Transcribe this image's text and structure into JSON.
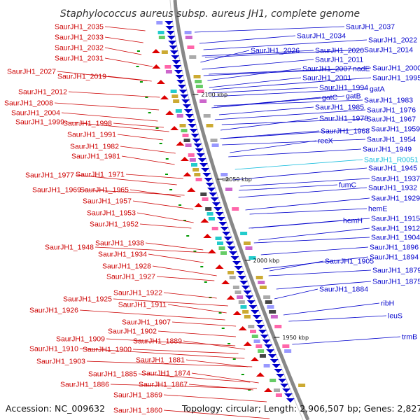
{
  "header": {
    "title": "Staphylococcus aureus subsp. aureus JH1, complete genome"
  },
  "footer": {
    "accession": "Accession: NC_009632",
    "summary": "Topology: circular; Length: 2,906,507 bp; Genes: 2,827"
  },
  "colors": {
    "left_label": "#cc0000",
    "right_label": "#0000cc",
    "rna_label": "#11bbdd",
    "backbone": "#888888",
    "forward_gene": "#dd0000",
    "reverse_gene": "#0000cc",
    "marker": "#009900"
  },
  "scale_marks": [
    {
      "label": "2100 kbp"
    },
    {
      "label": "2050 kbp"
    },
    {
      "label": "2000 kbp"
    },
    {
      "label": "1950 kbp"
    }
  ],
  "left_labels": [
    {
      "text": "SaurJH1_2035"
    },
    {
      "text": "SaurJH1_2033"
    },
    {
      "text": "SaurJH1_2032"
    },
    {
      "text": "SaurJH1_2031"
    },
    {
      "text": "SaurJH1_2027"
    },
    {
      "text": "SaurJH1_2019"
    },
    {
      "text": "SaurJH1_2012"
    },
    {
      "text": "SaurJH1_2008"
    },
    {
      "text": "SaurJH1_2004"
    },
    {
      "text": "SaurJH1_1999"
    },
    {
      "text": "SaurJH1_1998"
    },
    {
      "text": "SaurJH1_1991"
    },
    {
      "text": "SaurJH1_1982"
    },
    {
      "text": "SaurJH1_1981"
    },
    {
      "text": "SaurJH1_1977"
    },
    {
      "text": "SaurJH1_1971"
    },
    {
      "text": "SaurJH1_1969"
    },
    {
      "text": "SaurJH1_1965"
    },
    {
      "text": "SaurJH1_1957"
    },
    {
      "text": "SaurJH1_1953"
    },
    {
      "text": "SaurJH1_1952"
    },
    {
      "text": "SaurJH1_1948"
    },
    {
      "text": "SaurJH1_1938"
    },
    {
      "text": "SaurJH1_1934"
    },
    {
      "text": "SaurJH1_1928"
    },
    {
      "text": "SaurJH1_1927"
    },
    {
      "text": "SaurJH1_1922"
    },
    {
      "text": "SaurJH1_1925"
    },
    {
      "text": "SaurJH1_1911"
    },
    {
      "text": "SaurJH1_1926"
    },
    {
      "text": "SaurJH1_1907"
    },
    {
      "text": "SaurJH1_1902"
    },
    {
      "text": "SaurJH1_1909"
    },
    {
      "text": "SaurJH1_1889"
    },
    {
      "text": "SaurJH1_1910"
    },
    {
      "text": "SaurJH1_1900"
    },
    {
      "text": "SaurJH1_1903"
    },
    {
      "text": "SaurJH1_1881"
    },
    {
      "text": "SaurJH1_1885"
    },
    {
      "text": "SaurJH1_1874"
    },
    {
      "text": "SaurJH1_1886"
    },
    {
      "text": "SaurJH1_1867"
    },
    {
      "text": "SaurJH1_1869"
    },
    {
      "text": "SaurJH1_1860"
    }
  ],
  "right_labels": [
    {
      "text": "SaurJH1_2037"
    },
    {
      "text": "SaurJH1_2034"
    },
    {
      "text": "SaurJH1_2022"
    },
    {
      "text": "SaurJH1_2026"
    },
    {
      "text": "SaurJH1_2020"
    },
    {
      "text": "SaurJH1_2014"
    },
    {
      "text": "SaurJH1_2011"
    },
    {
      "text": "SaurJH1_2007"
    },
    {
      "text": "nadE"
    },
    {
      "text": "SaurJH1_2000"
    },
    {
      "text": "SaurJH1_2001"
    },
    {
      "text": "SaurJH1_1995"
    },
    {
      "text": "SaurJH1_1994"
    },
    {
      "text": "gatA"
    },
    {
      "text": "gatC"
    },
    {
      "text": "gatB"
    },
    {
      "text": "SaurJH1_1983"
    },
    {
      "text": "SaurJH1_1985"
    },
    {
      "text": "SaurJH1_1976"
    },
    {
      "text": "SaurJH1_1978"
    },
    {
      "text": "SaurJH1_1967"
    },
    {
      "text": "SaurJH1_1968"
    },
    {
      "text": "SaurJH1_1959"
    },
    {
      "text": "recX"
    },
    {
      "text": "SaurJH1_1954"
    },
    {
      "text": "SaurJH1_1949"
    },
    {
      "text": "SaurJH1_R0051",
      "rna": true
    },
    {
      "text": "SaurJH1_1945"
    },
    {
      "text": "fumC"
    },
    {
      "text": "SaurJH1_1937"
    },
    {
      "text": "SaurJH1_1932"
    },
    {
      "text": "SaurJH1_1929"
    },
    {
      "text": "hemE"
    },
    {
      "text": "hemH"
    },
    {
      "text": "SaurJH1_1915"
    },
    {
      "text": "SaurJH1_1912"
    },
    {
      "text": "SaurJH1_1904"
    },
    {
      "text": "SaurJH1_1896"
    },
    {
      "text": "SaurJH1_1905"
    },
    {
      "text": "SaurJH1_1894"
    },
    {
      "text": "SaurJH1_1879"
    },
    {
      "text": "SaurJH1_1875"
    },
    {
      "text": "SaurJH1_1884"
    },
    {
      "text": "ribH"
    },
    {
      "text": "leuS"
    },
    {
      "text": "trmB"
    }
  ]
}
